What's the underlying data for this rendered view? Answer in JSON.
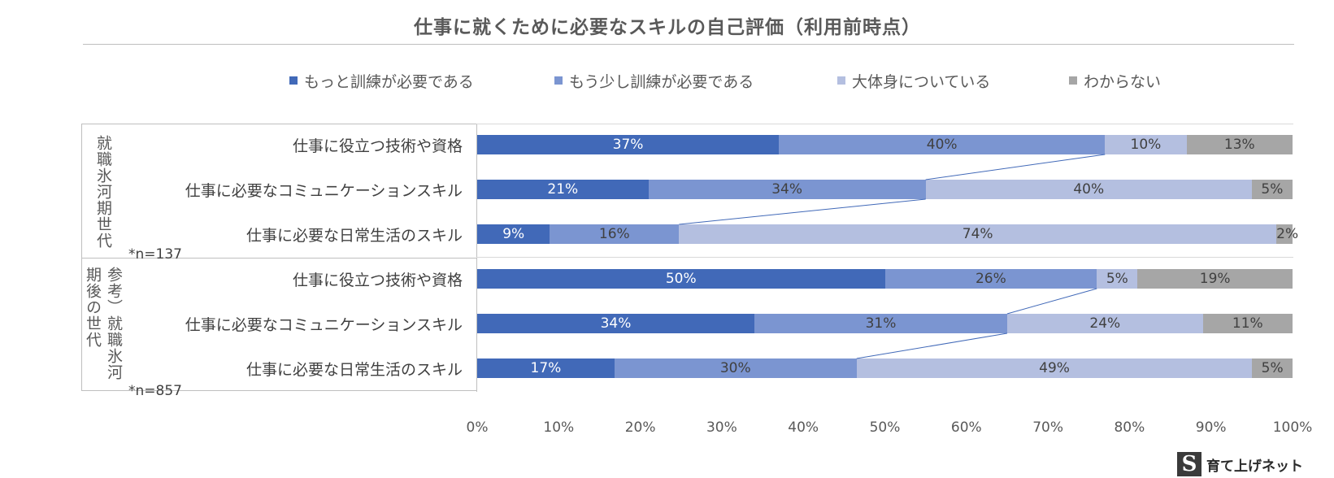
{
  "title": "仕事に就くために必要なスキルの自己評価（利用前時点）",
  "brand": {
    "mark": "S",
    "name": "育て上げネット"
  },
  "colors": {
    "s1": "#4169b8",
    "s2": "#7b95d1",
    "s3": "#b4bfe0",
    "s4": "#a6a6a6",
    "label_dark": "#ffffff",
    "label_light": "#404040"
  },
  "chart_data": {
    "type": "bar",
    "orientation": "horizontal",
    "stacked": true,
    "percent": true,
    "xlim": [
      0,
      100
    ],
    "xticks": [
      "0%",
      "10%",
      "20%",
      "30%",
      "40%",
      "50%",
      "60%",
      "70%",
      "80%",
      "90%",
      "100%"
    ],
    "legend_position": "top",
    "series": [
      {
        "name": "もっと訓練が必要である"
      },
      {
        "name": "もう少し訓練が必要である"
      },
      {
        "name": "大体身についている"
      },
      {
        "name": "わからない"
      }
    ],
    "groups": [
      {
        "label": "就職氷河期世代",
        "n": "*n=137",
        "rows": [
          {
            "category": "仕事に役立つ技術や資格",
            "values": [
              37,
              40,
              10,
              13
            ],
            "labels": [
              "37%",
              "40%",
              "10%",
              "13%"
            ]
          },
          {
            "category": "仕事に必要なコミュニケーションスキル",
            "values": [
              21,
              34,
              40,
              5
            ],
            "labels": [
              "21%",
              "34%",
              "40%",
              "5%"
            ]
          },
          {
            "category": "仕事に必要な日常生活のスキル",
            "values": [
              9,
              16,
              74,
              2
            ],
            "labels": [
              "9%",
              "16%",
              "74%",
              "2%"
            ]
          }
        ]
      },
      {
        "label": "参考）就職氷河期後の世代",
        "label_line1": "参考）就職氷河",
        "label_line2": "期後の世代",
        "n": "*n=857",
        "rows": [
          {
            "category": "仕事に役立つ技術や資格",
            "values": [
              50,
              26,
              5,
              19
            ],
            "labels": [
              "50%",
              "26%",
              "5%",
              "19%"
            ]
          },
          {
            "category": "仕事に必要なコミュニケーションスキル",
            "values": [
              34,
              31,
              24,
              11
            ],
            "labels": [
              "34%",
              "31%",
              "24%",
              "11%"
            ]
          },
          {
            "category": "仕事に必要な日常生活のスキル",
            "values": [
              17,
              30,
              49,
              5
            ],
            "labels": [
              "17%",
              "30%",
              "49%",
              "5%"
            ]
          }
        ]
      }
    ]
  }
}
